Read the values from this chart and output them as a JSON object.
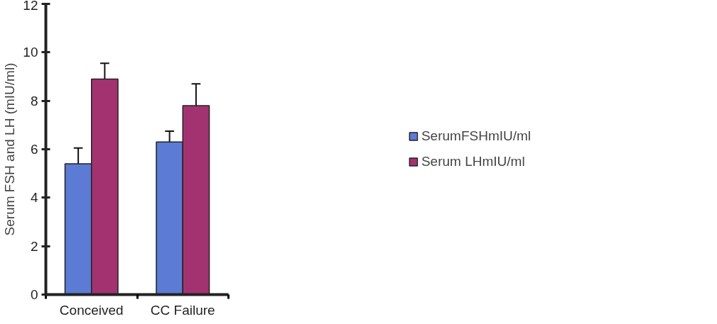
{
  "chart_data": {
    "type": "bar",
    "ylabel": "Serum FSH and LH (mIU/ml)",
    "categories": [
      "Conceived",
      "CC Failure"
    ],
    "series": [
      {
        "name": "SerumFSHmIU/ml",
        "color": "#5b7bd5",
        "values": [
          5.4,
          6.3
        ],
        "errors": [
          0.65,
          0.45
        ]
      },
      {
        "name": "Serum LHmIU/ml",
        "color": "#a33370",
        "values": [
          8.9,
          7.8
        ],
        "errors": [
          0.65,
          0.9
        ]
      }
    ],
    "ylim": [
      0,
      12
    ],
    "yticks": [
      0,
      2,
      4,
      6,
      8,
      10,
      12
    ],
    "grid": false,
    "legend": "right"
  }
}
